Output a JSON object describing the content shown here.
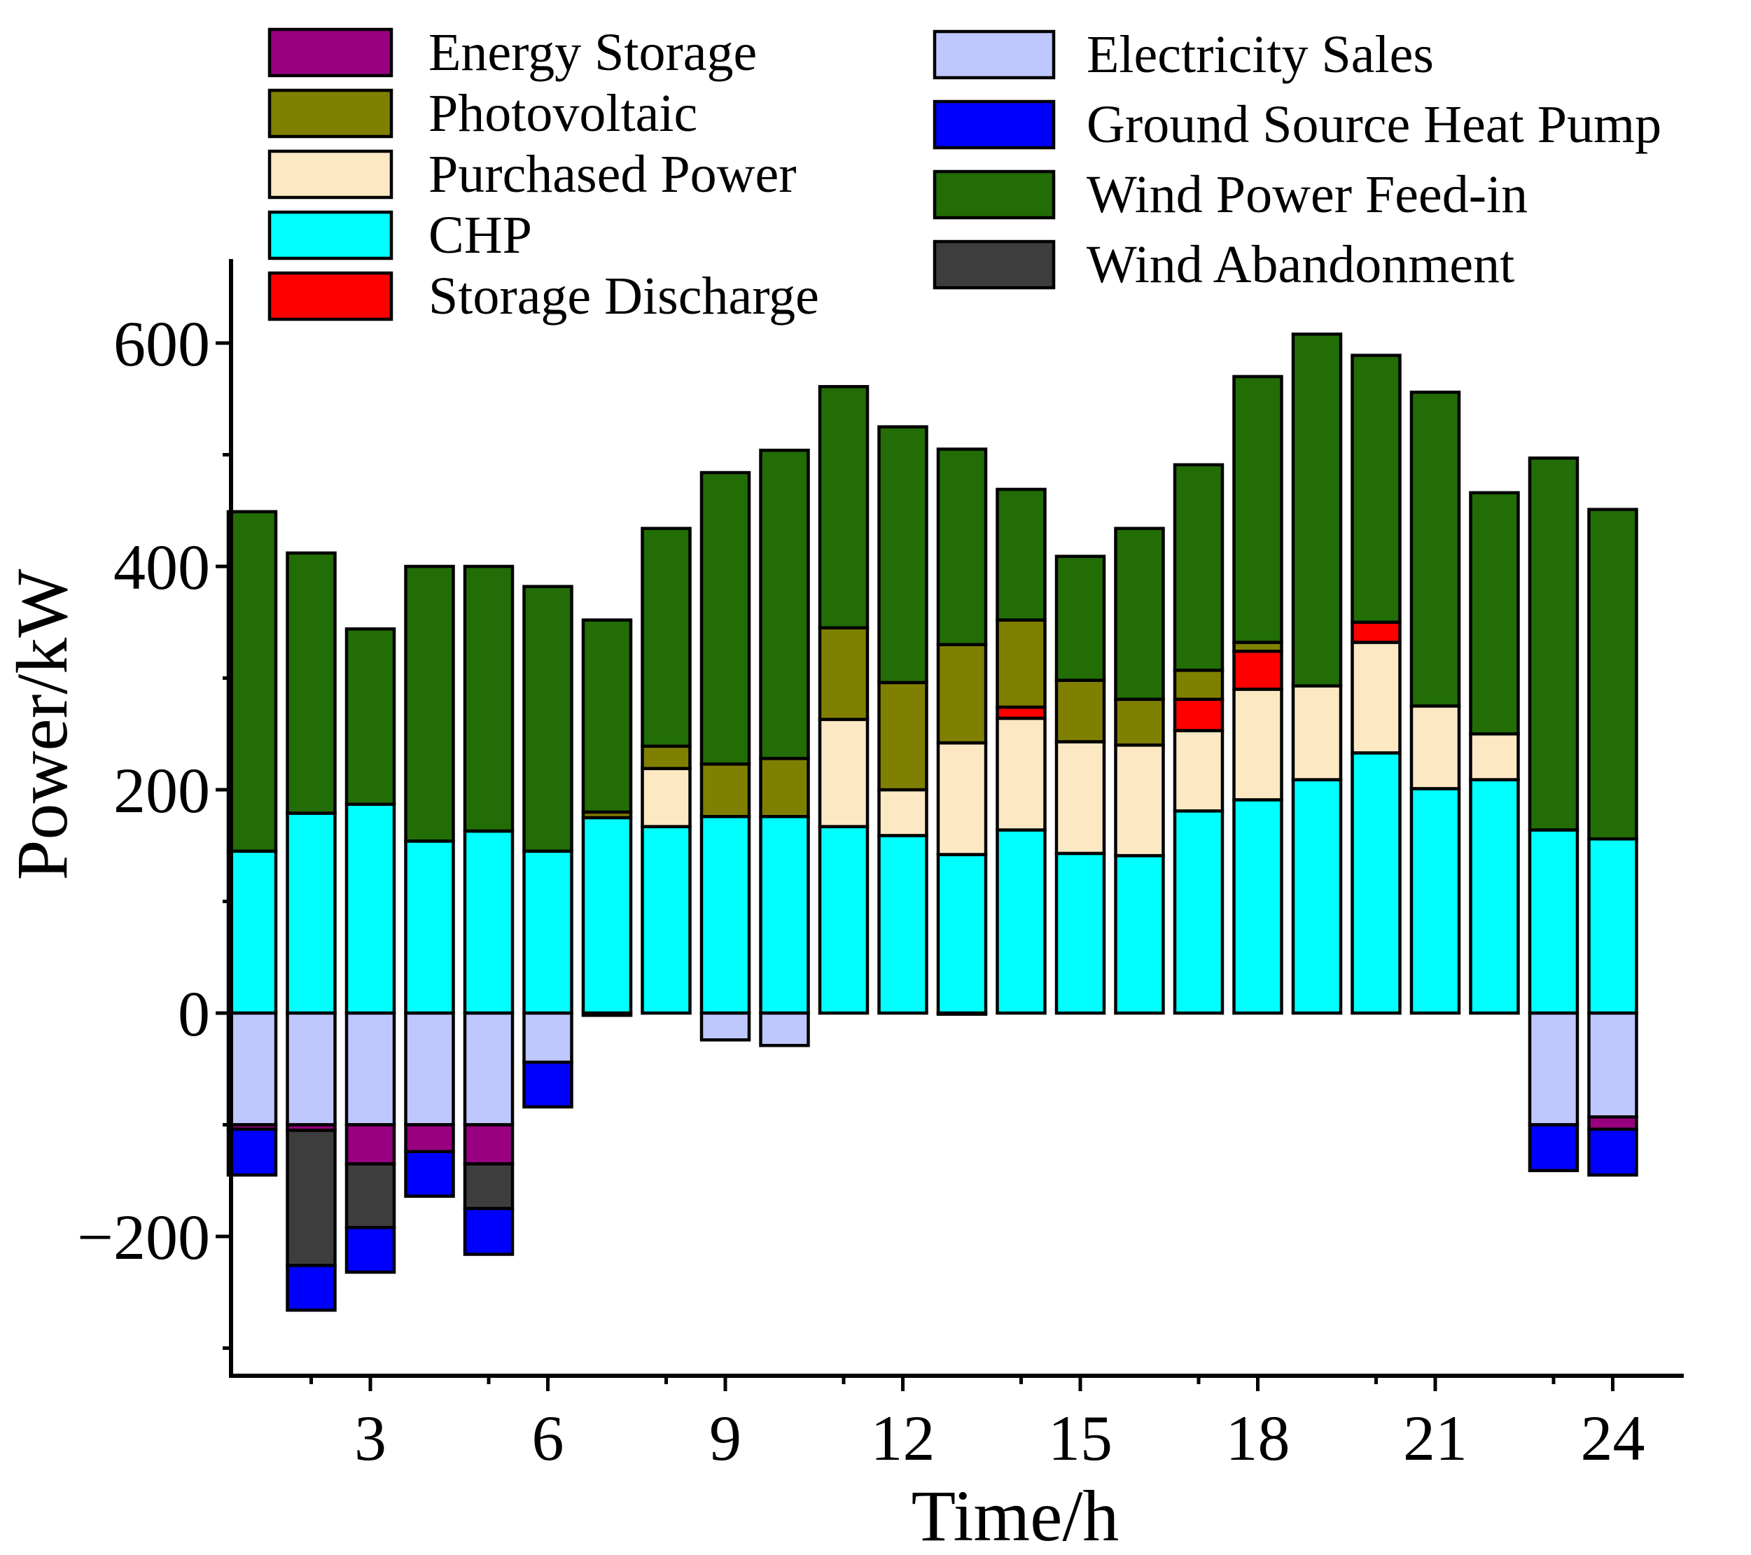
{
  "chart_data": {
    "type": "bar",
    "stacked": true,
    "xlabel": "Time/h",
    "ylabel": "Power/kW",
    "ylim": [
      -300,
      680
    ],
    "yticks": [
      -200,
      0,
      200,
      400,
      600
    ],
    "xticks": [
      3,
      6,
      9,
      12,
      15,
      18,
      21,
      24
    ],
    "categories": [
      1,
      2,
      3,
      4,
      5,
      6,
      7,
      8,
      9,
      10,
      11,
      12,
      13,
      14,
      15,
      16,
      17,
      18,
      19,
      20,
      21,
      22,
      23,
      24
    ],
    "positive_series": [
      {
        "name": "CHP",
        "color": "#00FFFF",
        "values": [
          145,
          179,
          187,
          154,
          163,
          145,
          175,
          167,
          176,
          176,
          167,
          159,
          142,
          164,
          143,
          141,
          181,
          191,
          209,
          233,
          201,
          209,
          164,
          156
        ]
      },
      {
        "name": "Purchased Power",
        "color": "#FDE8C4",
        "values": [
          0,
          0,
          0,
          0,
          0,
          0,
          0,
          52,
          0,
          0,
          96,
          41,
          100,
          100,
          100,
          99,
          72,
          99,
          84,
          99,
          74,
          41,
          0,
          0
        ]
      },
      {
        "name": "Storage Discharge",
        "color": "#FF0000",
        "values": [
          0,
          0,
          0,
          0,
          0,
          0,
          0,
          0,
          0,
          0,
          0,
          0,
          0,
          10,
          0,
          0,
          28,
          34,
          0,
          18,
          0,
          0,
          0,
          0
        ]
      },
      {
        "name": "Photovoltaic",
        "color": "#808000",
        "values": [
          0,
          0,
          0,
          0,
          0,
          0,
          5,
          20,
          47,
          52,
          82,
          96,
          88,
          78,
          55,
          41,
          26,
          8,
          0,
          0,
          0,
          0,
          0,
          0
        ]
      },
      {
        "name": "Wind Power Feed-in",
        "color": "#226D05",
        "values": [
          304,
          233,
          157,
          246,
          237,
          237,
          172,
          195,
          261,
          276,
          216,
          229,
          175,
          117,
          111,
          153,
          184,
          238,
          315,
          239,
          281,
          216,
          333,
          295
        ]
      }
    ],
    "negative_series": [
      {
        "name": "Electricity Sales",
        "color": "#BFC7FF",
        "values": [
          -100,
          -100,
          -100,
          -100,
          -100,
          -44,
          -2,
          0,
          -24,
          -29,
          0,
          0,
          -1,
          0,
          0,
          0,
          0,
          0,
          0,
          0,
          0,
          0,
          -100,
          -93
        ]
      },
      {
        "name": "Energy Storage",
        "color": "#990080",
        "values": [
          -4,
          -5,
          -35,
          -24,
          -35,
          0,
          0,
          0,
          0,
          0,
          0,
          0,
          0,
          0,
          0,
          0,
          0,
          0,
          0,
          0,
          0,
          0,
          0,
          -11
        ]
      },
      {
        "name": "Wind Abandonment",
        "color": "#3D3D3D",
        "values": [
          0,
          -121,
          -57,
          0,
          -40,
          0,
          0,
          0,
          0,
          0,
          0,
          0,
          0,
          0,
          0,
          0,
          0,
          0,
          0,
          0,
          0,
          0,
          0,
          0
        ]
      },
      {
        "name": "Ground Source Heat Pump",
        "color": "#0000FF",
        "values": [
          -41,
          -40,
          -40,
          -40,
          -41,
          -40,
          0,
          0,
          0,
          0,
          0,
          0,
          0,
          0,
          0,
          0,
          0,
          0,
          0,
          0,
          0,
          0,
          -41,
          -41
        ]
      }
    ],
    "legend": [
      {
        "name": "Energy Storage",
        "color": "#990080",
        "column": "left"
      },
      {
        "name": "Photovoltaic",
        "color": "#808000",
        "column": "left"
      },
      {
        "name": "Purchased Power",
        "color": "#FDE8C4",
        "column": "left"
      },
      {
        "name": "CHP",
        "color": "#00FFFF",
        "column": "left"
      },
      {
        "name": "Storage Discharge",
        "color": "#FF0000",
        "column": "left"
      },
      {
        "name": "Electricity Sales",
        "color": "#BFC7FF",
        "column": "right"
      },
      {
        "name": "Ground Source Heat Pump",
        "color": "#0000FF",
        "column": "right"
      },
      {
        "name": "Wind Power Feed-in",
        "color": "#226D05",
        "column": "right"
      },
      {
        "name": "Wind Abandonment",
        "color": "#3D3D3D",
        "column": "right"
      }
    ],
    "legend_position": "top"
  }
}
